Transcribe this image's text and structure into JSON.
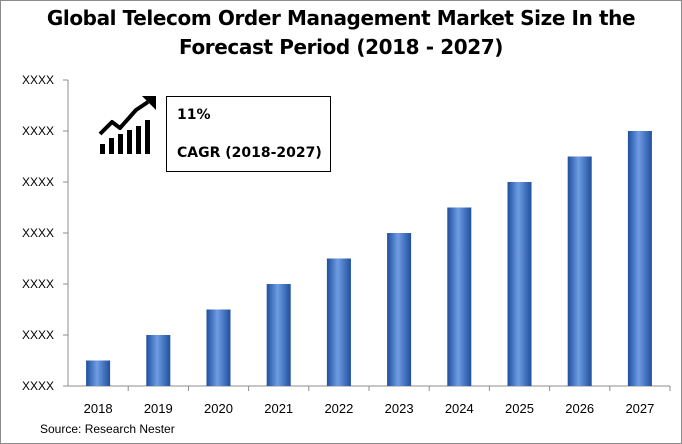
{
  "chart_data": {
    "type": "bar",
    "title_lines": [
      "Global Telecom Order Management  Market Size In the",
      "Forecast Period (2018 - 2027)"
    ],
    "categories": [
      "2018",
      "2019",
      "2020",
      "2021",
      "2022",
      "2023",
      "2024",
      "2025",
      "2026",
      "2027"
    ],
    "values": [
      1,
      2,
      3,
      4,
      5,
      6,
      7,
      8,
      9,
      10
    ],
    "y_tick_labels": [
      "XXXX",
      "XXXX",
      "XXXX",
      "XXXX",
      "XXXX",
      "XXXX",
      "XXXX"
    ],
    "ylim": [
      0,
      12
    ],
    "grid": false,
    "legend": "none",
    "bar_color": "#3a6fc4",
    "bar_color_light": "#6f9de3",
    "bar_color_dark": "#1f4f9e"
  },
  "callout": {
    "value": "11%",
    "label": "CAGR (2018-2027)",
    "icon": "growth-chart-icon"
  },
  "source": "Source: Research Nester"
}
